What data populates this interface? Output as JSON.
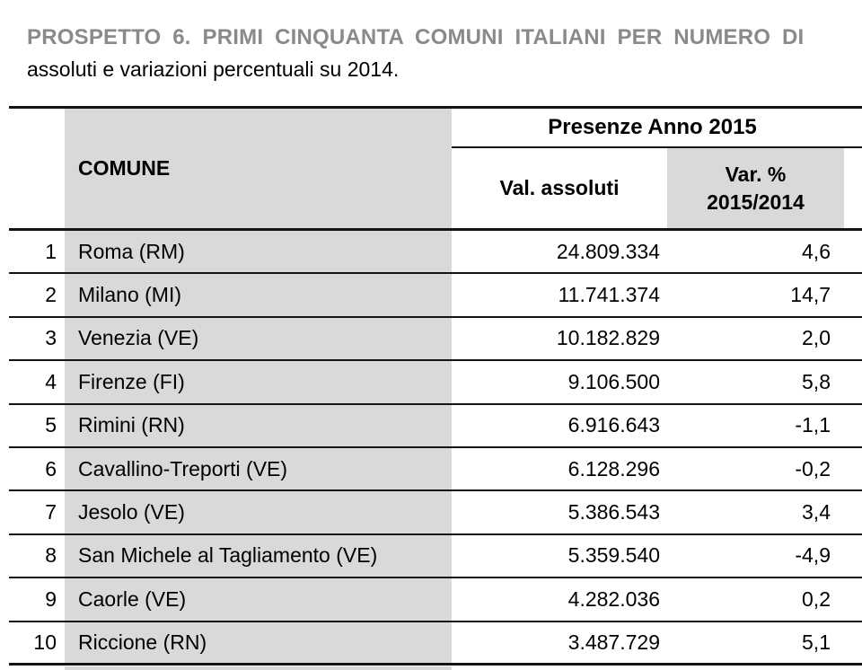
{
  "caption": {
    "line1": "PROSPETTO 6. PRIMI CINQUANTA COMUNI ITALIANI PER NUMERO DI",
    "line2": "assoluti e variazioni percentuali su 2014."
  },
  "table": {
    "group_header": "Presenze Anno 2015",
    "columns": {
      "comune": "COMUNE",
      "val_assoluti": "Val. assoluti",
      "var_line1": "Var. %",
      "var_line2": "2015/2014"
    },
    "rows": [
      {
        "rank": "1",
        "comune": "Roma (RM)",
        "val": "24.809.334",
        "var": "4,6"
      },
      {
        "rank": "2",
        "comune": "Milano (MI)",
        "val": "11.741.374",
        "var": "14,7"
      },
      {
        "rank": "3",
        "comune": "Venezia (VE)",
        "val": "10.182.829",
        "var": "2,0"
      },
      {
        "rank": "4",
        "comune": "Firenze (FI)",
        "val": "9.106.500",
        "var": "5,8"
      },
      {
        "rank": "5",
        "comune": "Rimini (RN)",
        "val": "6.916.643",
        "var": "-1,1"
      },
      {
        "rank": "6",
        "comune": "Cavallino-Treporti (VE)",
        "val": "6.128.296",
        "var": "-0,2"
      },
      {
        "rank": "7",
        "comune": "Jesolo (VE)",
        "val": "5.386.543",
        "var": "3,4"
      },
      {
        "rank": "8",
        "comune": "San Michele al Tagliamento (VE)",
        "val": "5.359.540",
        "var": "-4,9"
      },
      {
        "rank": "9",
        "comune": "Caorle (VE)",
        "val": "4.282.036",
        "var": "0,2"
      },
      {
        "rank": "10",
        "comune": "Riccione (RN)",
        "val": "3.487.729",
        "var": "5,1"
      }
    ]
  },
  "colors": {
    "header_fill": "#d9d9d9",
    "caption_gray": "#8a8a8a",
    "rule_black": "#141414"
  }
}
